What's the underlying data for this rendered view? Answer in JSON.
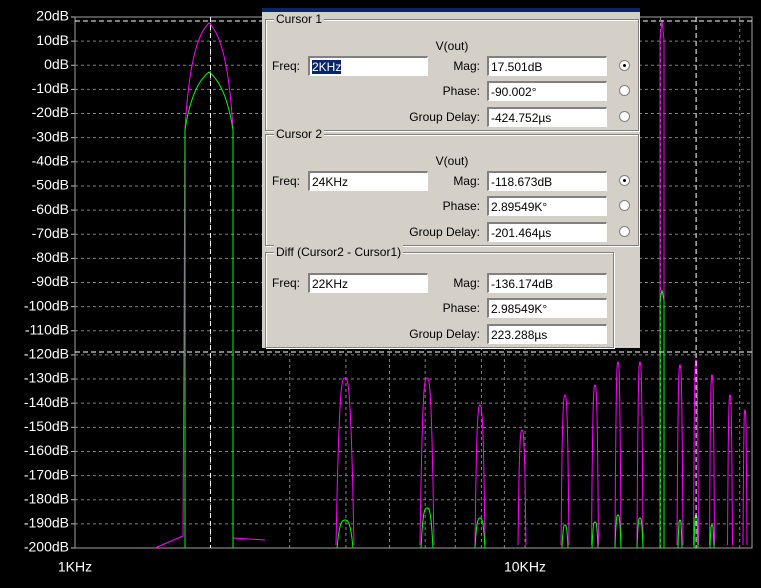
{
  "plot": {
    "y_tick_labels": [
      "20dB",
      "10dB",
      "0dB",
      "-10dB",
      "-20dB",
      "-30dB",
      "-40dB",
      "-50dB",
      "-60dB",
      "-70dB",
      "-80dB",
      "-90dB",
      "-100dB",
      "-110dB",
      "-120dB",
      "-130dB",
      "-140dB",
      "-150dB",
      "-160dB",
      "-170dB",
      "-180dB",
      "-190dB",
      "-200dB"
    ],
    "x_tick_labels": [
      "1KHz",
      "10KHz"
    ]
  },
  "cursor1": {
    "title": "Cursor 1",
    "trace": "V(out)",
    "freq_label": "Freq:",
    "freq": "2KHz",
    "mag_label": "Mag:",
    "mag": "17.501dB",
    "phase_label": "Phase:",
    "phase": "-90.002°",
    "group_delay_label": "Group Delay:",
    "group_delay": "-424.752µs"
  },
  "cursor2": {
    "title": "Cursor 2",
    "trace": "V(out)",
    "freq_label": "Freq:",
    "freq": "24KHz",
    "mag_label": "Mag:",
    "mag": "-118.673dB",
    "phase_label": "Phase:",
    "phase": "2.89549K°",
    "group_delay_label": "Group Delay:",
    "group_delay": "-201.464µs"
  },
  "diff": {
    "title": "Diff (Cursor2 - Cursor1)",
    "freq_label": "Freq:",
    "freq": "22KHz",
    "mag_label": "Mag:",
    "mag": "-136.174dB",
    "phase_label": "Phase:",
    "phase": "2.98549K°",
    "group_delay_label": "Group Delay:",
    "group_delay": "223.288µs"
  }
}
